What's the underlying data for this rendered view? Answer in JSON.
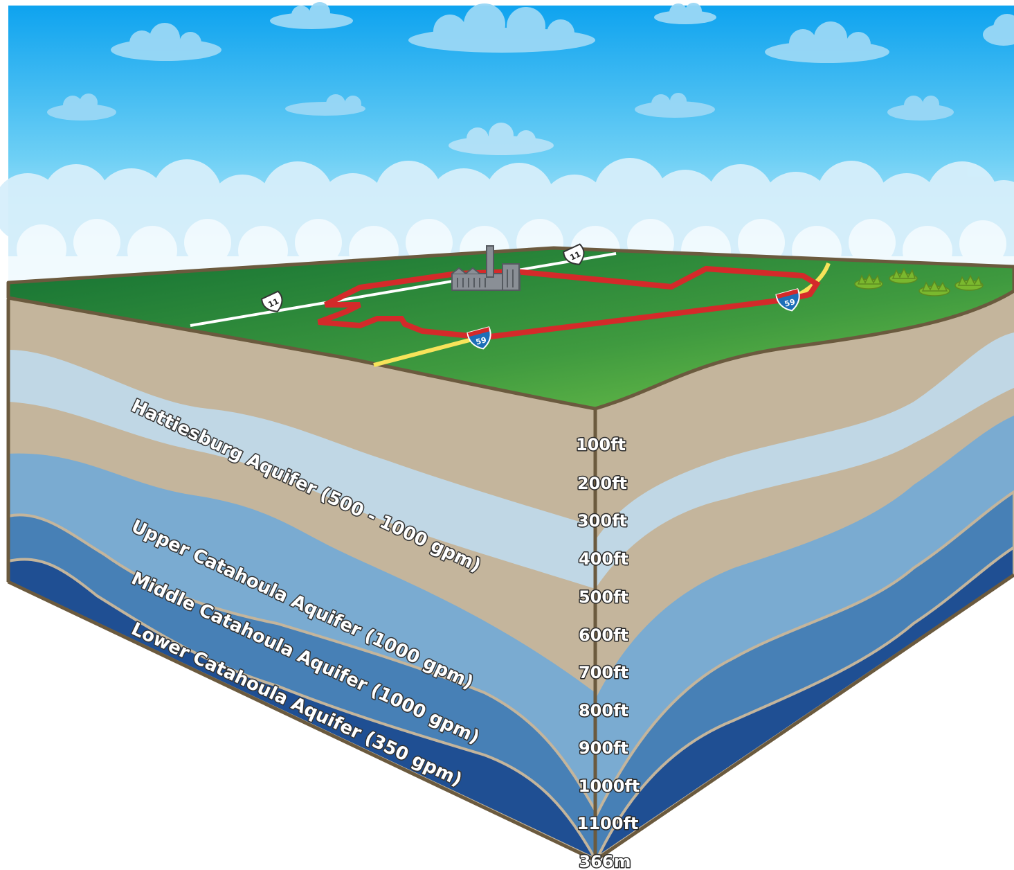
{
  "aquifers": [
    {
      "label": "Hattiesburg Aquifer (500 - 1000 gpm)"
    },
    {
      "label": "Upper Catahoula Aquifer (1000 gpm)"
    },
    {
      "label": "Middle Catahoula Aquifer (1000 gpm)"
    },
    {
      "label": "Lower Catahoula Aquifer (350 gpm)"
    }
  ],
  "depth_markers": [
    "100ft",
    "200ft",
    "300ft",
    "400ft",
    "500ft",
    "600ft",
    "700ft",
    "800ft",
    "900ft",
    "1000ft",
    "1100ft",
    "366m"
  ],
  "highways": {
    "us_route": "11",
    "interstate": "59"
  },
  "colors": {
    "sky_top": "#0ea3ef",
    "sky_bottom": "#dff3fc",
    "grass_dark": "#1b7a3a",
    "grass_light": "#6cc04a",
    "clay": "#c4b59c",
    "aquifer_pale": "#c0d7e5",
    "aquifer_light": "#7aabd1",
    "aquifer_mid": "#4780b6",
    "aquifer_deep": "#1f4f93",
    "outline": "#6b5a3e",
    "route_red": "#d42a2a",
    "highway_yellow": "#f7e35a",
    "interstate_blue": "#1d6fb8"
  }
}
